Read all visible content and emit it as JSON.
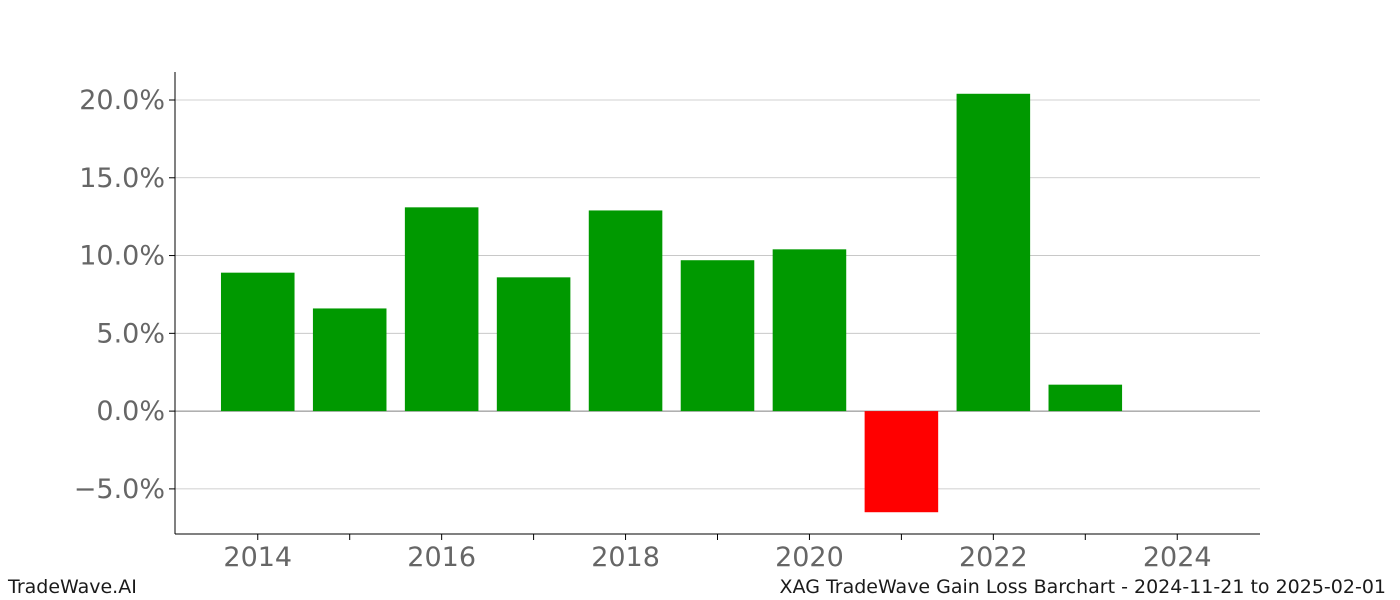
{
  "footer": {
    "left": "TradeWave.AI",
    "right": "XAG TradeWave Gain Loss Barchart - 2024-11-21 to 2025-02-01"
  },
  "chart_data": {
    "type": "bar",
    "title": "",
    "xlabel": "",
    "ylabel": "",
    "x": [
      2014,
      2015,
      2016,
      2017,
      2018,
      2019,
      2020,
      2021,
      2022,
      2023
    ],
    "values": [
      8.9,
      6.6,
      13.1,
      8.6,
      12.9,
      9.7,
      10.4,
      -6.5,
      20.4,
      1.7
    ],
    "xticks": [
      2014,
      2016,
      2018,
      2020,
      2022,
      2024
    ],
    "xlim": [
      2013.1,
      2024.9
    ],
    "yticks": [
      -5.0,
      0.0,
      5.0,
      10.0,
      15.0,
      20.0
    ],
    "ytick_labels": [
      "−5.0%",
      "0.0%",
      "5.0%",
      "10.0%",
      "15.0%",
      "20.0%"
    ],
    "ylim": [
      -7.9,
      21.8
    ],
    "grid": "horizontal",
    "colors": {
      "positive": "#009900",
      "negative": "#ff0000",
      "grid": "#c0c0c0",
      "zero_line": "#808080",
      "tick_text": "#666666"
    }
  }
}
